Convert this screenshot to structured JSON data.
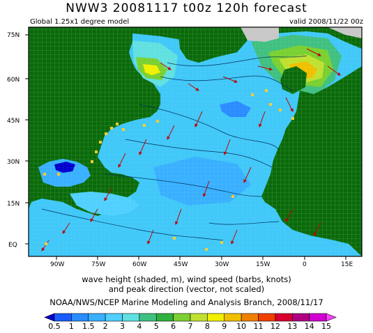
{
  "title": "NWW3 20081117 t00z 120h forecast",
  "subtitle_left": "Global 1.25x1 degree model",
  "subtitle_right": "valid 2008/11/22 00z",
  "caption_line1": "wave height (shaded, m), wind speed (barbs, knots)",
  "caption_line2": "and peak direction (vector, not scaled)",
  "source": "NOAA/NWS/NCEP Marine Modeling and Analysis Branch, 2008/11/17",
  "y_axis_labels": [
    "75N",
    "60N",
    "45N",
    "30N",
    "15N",
    "EQ"
  ],
  "x_axis_labels": [
    "90W",
    "75W",
    "60W",
    "45W",
    "30W",
    "15W",
    "0",
    "15E"
  ],
  "colorbar": {
    "labels": [
      "0.5",
      "1",
      "1.5",
      "2",
      "3",
      "4",
      "5",
      "6",
      "7",
      "8",
      "9",
      "10",
      "11",
      "12",
      "13",
      "14",
      "15"
    ],
    "colors": [
      "#0000cc",
      "#1a5cff",
      "#2a8cff",
      "#38b0ff",
      "#4fd0ff",
      "#60e0e0",
      "#40c080",
      "#30b040",
      "#7ad030",
      "#c0e030",
      "#f0f000",
      "#f0c000",
      "#f08000",
      "#f04000",
      "#d80030",
      "#b00080",
      "#d000d0",
      "#ff40ff"
    ]
  },
  "colors": {
    "land": "#0a6a0a",
    "ice": "#c8c8c8",
    "ocean_base": "#40c8f8"
  }
}
